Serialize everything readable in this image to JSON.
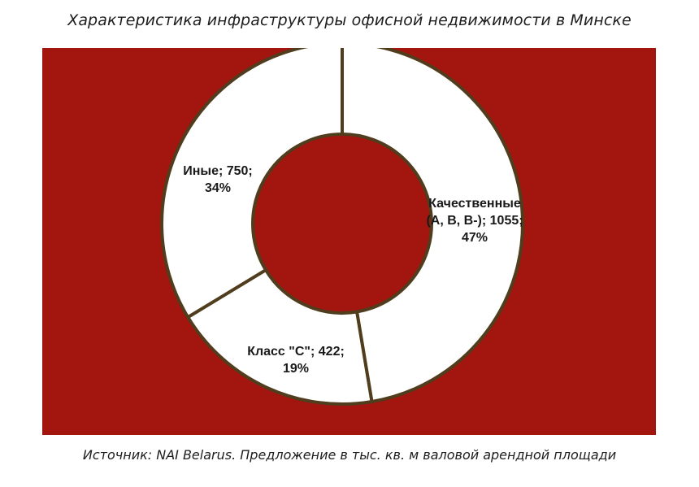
{
  "page": {
    "title": "Характеристика инфраструктуры офисной недвижимости в Минске",
    "source": "Источник: NAI Belarus. Предложение в тыс. кв. м валовой арендной площади"
  },
  "colors": {
    "background_panel": "#a3150f",
    "slice_fill": "#ffffff",
    "slice_border": "#4f3d1d",
    "label_text": "#1a1a1a"
  },
  "chart_data": {
    "type": "pie",
    "variant": "donut",
    "title": "Характеристика инфраструктуры офисной недвижимости в Минске",
    "categories": [
      "Качественные (А, В, В-)",
      "Класс \"С\"",
      "Иные"
    ],
    "values": [
      1055,
      422,
      750
    ],
    "percents": [
      47,
      19,
      34
    ],
    "unit": "тыс. кв. м",
    "labels": [
      [
        "Качественные",
        "(А, В, В-); 1055;",
        "47%"
      ],
      [
        "Класс \"С\"; 422;",
        "19%"
      ],
      [
        "Иные; 750;",
        "34%"
      ]
    ],
    "start_angle_deg": 0,
    "direction": "clockwise",
    "legend": "none"
  }
}
